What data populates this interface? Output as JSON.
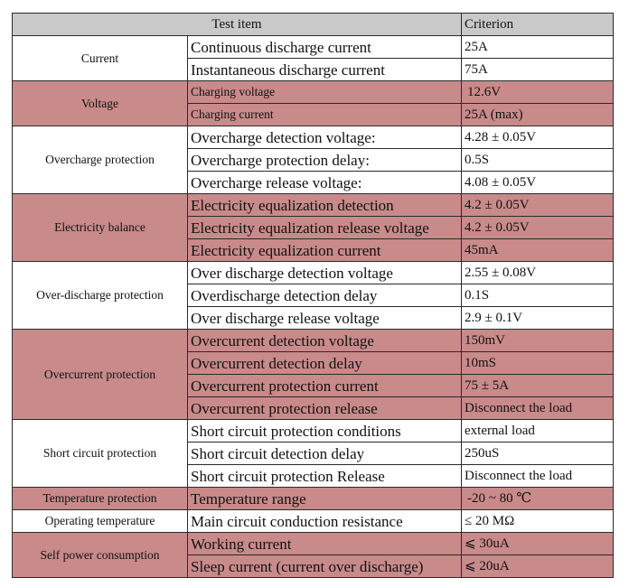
{
  "header": {
    "item": "Test item",
    "criterion": "Criterion"
  },
  "groups": [
    {
      "category": "Current",
      "shaded": false,
      "rows": [
        {
          "param": "Continuous discharge current",
          "criterion": "25A"
        },
        {
          "param": "Instantaneous discharge current",
          "criterion": "75A"
        }
      ]
    },
    {
      "category": "Voltage",
      "shaded": true,
      "rows": [
        {
          "param": "Charging voltage",
          "criterion": "12.6V",
          "small": true,
          "indent": true
        },
        {
          "param": "Charging current",
          "criterion": "25A (max)",
          "small": true
        }
      ]
    },
    {
      "category": "Overcharge protection",
      "shaded": false,
      "rows": [
        {
          "param": "Overcharge detection voltage:",
          "criterion": "4.28 ± 0.05V"
        },
        {
          "param": "Overcharge protection delay:",
          "criterion": "0.5S"
        },
        {
          "param": "Overcharge release voltage:",
          "criterion": "4.08 ± 0.05V"
        }
      ]
    },
    {
      "category": "Electricity balance",
      "shaded": true,
      "rows": [
        {
          "param": "Electricity equalization detection",
          "criterion": "4.2 ± 0.05V"
        },
        {
          "param": "Electricity equalization release voltage",
          "criterion": "4.2 ± 0.05V"
        },
        {
          "param": "Electricity equalization current",
          "criterion": "45mA"
        }
      ]
    },
    {
      "category": "Over-discharge protection",
      "shaded": false,
      "rows": [
        {
          "param": "Over discharge detection voltage",
          "criterion": "2.55 ± 0.08V"
        },
        {
          "param": "Overdischarge detection delay",
          "criterion": "0.1S"
        },
        {
          "param": "Over discharge release voltage",
          "criterion": "2.9 ± 0.1V"
        }
      ]
    },
    {
      "category": "Overcurrent protection",
      "shaded": true,
      "rows": [
        {
          "param": "Overcurrent detection voltage",
          "criterion": "150mV"
        },
        {
          "param": "Overcurrent detection delay",
          "criterion": "10mS"
        },
        {
          "param": "Overcurrent protection current",
          "criterion": "75 ± 5A"
        },
        {
          "param": "Overcurrent protection release",
          "criterion": "Disconnect the load"
        }
      ]
    },
    {
      "category": "Short circuit protection",
      "shaded": false,
      "rows": [
        {
          "param": "Short circuit protection conditions",
          "criterion": "external load"
        },
        {
          "param": "Short circuit detection delay",
          "criterion": "250uS"
        },
        {
          "param": "Short circuit protection Release",
          "criterion": "Disconnect the load"
        }
      ]
    },
    {
      "category": "Temperature protection",
      "shaded": true,
      "rows": [
        {
          "param": "Temperature range",
          "criterion": "-20 ~ 80 ℃",
          "indent": true
        }
      ]
    },
    {
      "category": "Operating temperature",
      "shaded": false,
      "rows": [
        {
          "param": "Main circuit conduction resistance",
          "criterion": "≤ 20 MΩ"
        }
      ]
    },
    {
      "category": "Self power consumption",
      "shaded": true,
      "rows": [
        {
          "param": "Working current",
          "criterion": "⩽ 30uA"
        },
        {
          "param": "Sleep current (current over discharge)",
          "criterion": "⩽ 20uA"
        }
      ]
    }
  ],
  "colors": {
    "shaded": "#c98a8a",
    "header": "#c9c9c9",
    "border": "#2a2a2a"
  }
}
